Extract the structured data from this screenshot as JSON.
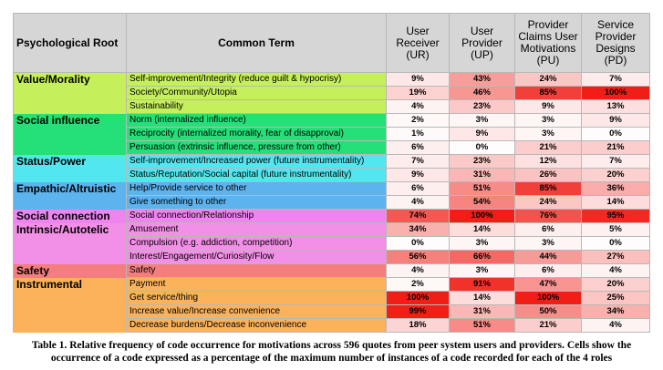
{
  "table": {
    "header": [
      "Psychological Root",
      "Common Term",
      "User Receiver (UR)",
      "User Provider (UP)",
      "Provider Claims User Motivations (PU)",
      "Service Provider Designs (PD)"
    ],
    "groups": [
      {
        "root": "Value/Morality",
        "color": "#c6ef5c",
        "rows": [
          {
            "term": "Self-improvement/Integrity (reduce guilt & hypocrisy)",
            "values": [
              "9%",
              "43%",
              "24%",
              "7%"
            ]
          },
          {
            "term": "Society/Community/Utopia",
            "values": [
              "19%",
              "46%",
              "85%",
              "100%"
            ]
          },
          {
            "term": "Sustainability",
            "values": [
              "4%",
              "23%",
              "9%",
              "13%"
            ]
          }
        ]
      },
      {
        "root": "Social influence",
        "color": "#25df78",
        "rows": [
          {
            "term": "Norm (internalized influence)",
            "values": [
              "2%",
              "3%",
              "3%",
              "9%"
            ]
          },
          {
            "term": "Reciprocity (internalized morality, fear of disapproval)",
            "values": [
              "1%",
              "9%",
              "3%",
              "0%"
            ]
          },
          {
            "term": "Persuasion (extrinsic influence, pressure from other)",
            "values": [
              "6%",
              "0%",
              "21%",
              "21%"
            ]
          }
        ]
      },
      {
        "root": "Status/Power",
        "color": "#52e6f0",
        "rows": [
          {
            "term": "Self-improvement/Increased power (future instrumentality)",
            "values": [
              "7%",
              "23%",
              "12%",
              "7%"
            ]
          },
          {
            "term": "Status/Reputation/Social capital (future instrumentality)",
            "values": [
              "9%",
              "31%",
              "26%",
              "20%"
            ]
          }
        ]
      },
      {
        "root": "Empathic/Altruistic",
        "color": "#5cb3ee",
        "rows": [
          {
            "term": "Help/Provide service to other",
            "values": [
              "6%",
              "51%",
              "85%",
              "36%"
            ]
          },
          {
            "term": "Give something to other",
            "values": [
              "4%",
              "54%",
              "24%",
              "14%"
            ]
          }
        ]
      },
      {
        "root": "Social connection",
        "color": "#ee84ee",
        "rows": [
          {
            "term": "Social connection/Relationship",
            "values": [
              "74%",
              "100%",
              "76%",
              "95%"
            ]
          }
        ]
      },
      {
        "root": "Intrinsic/Autotelic",
        "color": "#f28fe6",
        "rows": [
          {
            "term": "Amusement",
            "values": [
              "34%",
              "14%",
              "6%",
              "5%"
            ]
          },
          {
            "term": "Compulsion (e.g. addiction, competition)",
            "values": [
              "0%",
              "3%",
              "3%",
              "0%"
            ]
          },
          {
            "term": "Interest/Engagement/Curiosity/Flow",
            "values": [
              "56%",
              "66%",
              "44%",
              "27%"
            ]
          }
        ]
      },
      {
        "root": "Safety",
        "color": "#f47d7d",
        "rows": [
          {
            "term": "Safety",
            "values": [
              "4%",
              "3%",
              "6%",
              "4%"
            ]
          }
        ]
      },
      {
        "root": "Instrumental",
        "color": "#fbb25a",
        "rows": [
          {
            "term": "Payment",
            "values": [
              "2%",
              "91%",
              "47%",
              "20%"
            ]
          },
          {
            "term": "Get service/thing",
            "values": [
              "100%",
              "14%",
              "100%",
              "25%"
            ]
          },
          {
            "term": "Increase value/Increase convenience",
            "values": [
              "99%",
              "31%",
              "50%",
              "34%"
            ]
          },
          {
            "term": "Decrease burdens/Decrease inconvenience",
            "values": [
              "18%",
              "51%",
              "21%",
              "4%"
            ]
          }
        ]
      }
    ]
  },
  "caption": "Table 1. Relative frequency of code occurrence for motivations across 596 quotes from peer system users and providers. Cells show the occurrence of a code expressed as a percentage of the maximum number of instances of a code recorded for each of the 4 roles"
}
